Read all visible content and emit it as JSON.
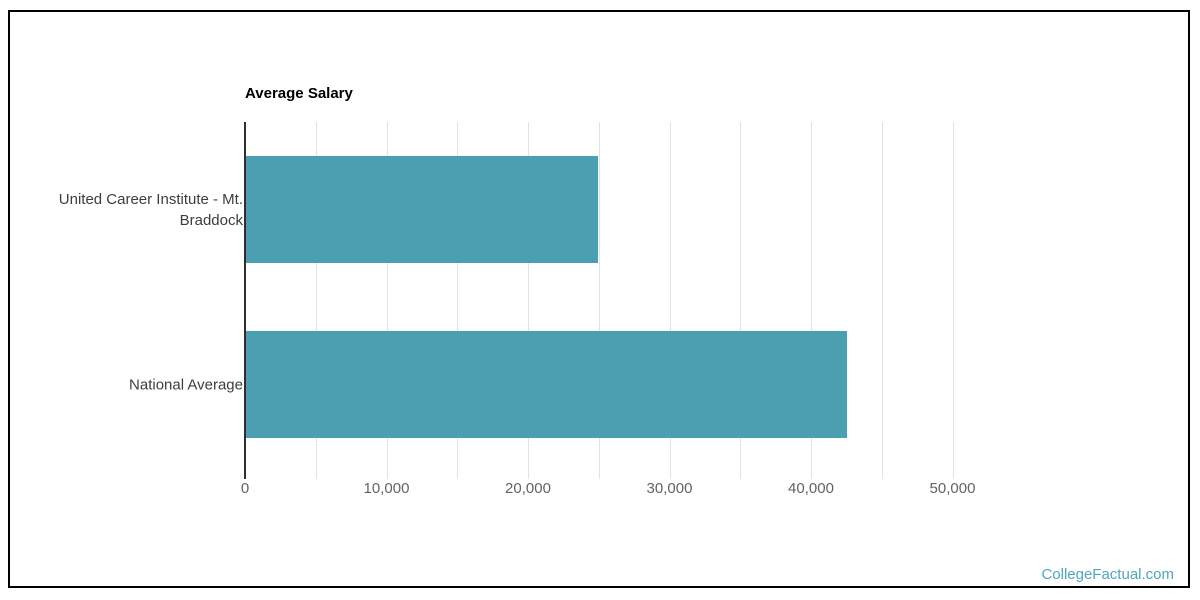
{
  "page": {
    "background": "#ffffff",
    "frame_border_color": "#000000"
  },
  "watermark": {
    "text": "CollegeFactual.com",
    "color": "#4fa6c0"
  },
  "chart_data": {
    "type": "bar",
    "orientation": "horizontal",
    "title": "Average Salary",
    "categories": [
      "United Career Institute - Mt. Braddock",
      "National Average"
    ],
    "values": [
      24900,
      42500
    ],
    "xlabel": "",
    "ylabel": "",
    "xlim": [
      0,
      50000
    ],
    "x_tick_interval": 5000,
    "x_label_interval": 10000,
    "x_tick_labels": [
      "0",
      "10,000",
      "20,000",
      "30,000",
      "40,000",
      "50,000"
    ],
    "category_display_lines": [
      [
        "United Career Institute - Mt.",
        "Braddock"
      ],
      [
        "National Average"
      ]
    ],
    "bar_color": "#4aa0b0",
    "grid": true,
    "gridline_color": "#e3e3e3",
    "axis_line_color": "#2e2e2e",
    "legend": "none"
  }
}
